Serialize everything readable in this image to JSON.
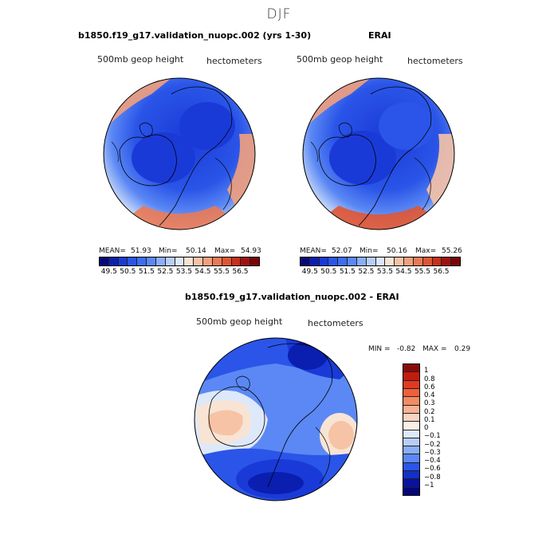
{
  "figure_title": "DJF",
  "panel1": {
    "title": "b1850.f19_g17.validation_nuopc.002 (yrs 1-30)",
    "field_label": "500mb geop height",
    "units_label": "hectometers",
    "mean_label": "MEAN=",
    "mean": "51.93",
    "min_label": "Min=",
    "min": "50.14",
    "max_label": "Max=",
    "max": "54.93"
  },
  "panel2": {
    "title": "ERAI",
    "field_label": "500mb geop height",
    "units_label": "hectometers",
    "mean_label": "MEAN=",
    "mean": "52.07",
    "min_label": "Min=",
    "min": "50.16",
    "max_label": "Max=",
    "max": "55.26"
  },
  "panel3": {
    "title": "b1850.f19_g17.validation_nuopc.002 - ERAI",
    "field_label": "500mb geop height",
    "units_label": "hectometers",
    "min_label": "MIN =",
    "min": "-0.82",
    "max_label": "MAX =",
    "max": "0.29"
  },
  "colorbar_abs": {
    "labels": [
      "49.5",
      "50.5",
      "51.5",
      "52.5",
      "53.5",
      "54.5",
      "55.5",
      "56.5"
    ],
    "colors": [
      "#08087a",
      "#0a1fb0",
      "#1a3ad8",
      "#2a55e8",
      "#3b6ef0",
      "#5b88f4",
      "#8aaef6",
      "#b8cdf8",
      "#dde8fa",
      "#f8e4d4",
      "#f7c3a6",
      "#f2a07d",
      "#ea7a57",
      "#e05533",
      "#c8301a",
      "#a01210",
      "#780606"
    ]
  },
  "colorbar_diff": {
    "labels": [
      "1",
      "0.8",
      "0.6",
      "0.4",
      "0.3",
      "0.2",
      "0.1",
      "0",
      "−0.1",
      "−0.2",
      "−0.3",
      "−0.4",
      "−0.6",
      "−0.8",
      "−1"
    ],
    "colors": [
      "#8a0a0a",
      "#c21c10",
      "#e23a20",
      "#ef5f3a",
      "#f48a62",
      "#f6b293",
      "#f8d4c2",
      "#fbefe8",
      "#dde8fa",
      "#b8cdf8",
      "#8aaef6",
      "#5b88f4",
      "#2a55e8",
      "#1230c8",
      "#0a10a0",
      "#05057a"
    ]
  }
}
